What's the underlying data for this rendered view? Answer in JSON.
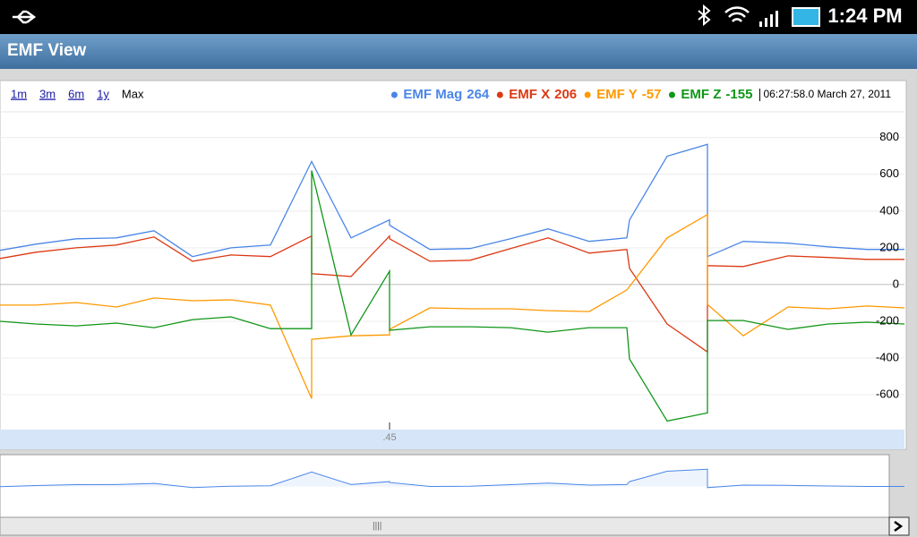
{
  "status_bar": {
    "time": "1:24 PM"
  },
  "app_bar": {
    "title": "EMF View"
  },
  "chart_data": {
    "type": "line",
    "zoom_links": [
      "1m",
      "3m",
      "6m",
      "1y",
      "Max"
    ],
    "timestamp": "06:27:58.0 March 27, 2011",
    "x": [
      0,
      40,
      85,
      130,
      172,
      215,
      258,
      302,
      348,
      348,
      392,
      435,
      435,
      480,
      525,
      570,
      612,
      658,
      700,
      703,
      745,
      790,
      790,
      830,
      880,
      925,
      968,
      1010
    ],
    "xlim": [
      0,
      1010
    ],
    "xticks": [
      {
        "value": 435,
        "label": ".45"
      }
    ],
    "ylim": [
      -780,
      940
    ],
    "yticks": [
      800,
      600,
      400,
      200,
      0,
      -200,
      -400,
      -600
    ],
    "grid": true,
    "series": [
      {
        "name": "EMF Mag",
        "current_value": 264,
        "color": "#4a86e8",
        "values": [
          186,
          220,
          249,
          254,
          293,
          152,
          200,
          215,
          670,
          670,
          254,
          352,
          323,
          191,
          196,
          249,
          303,
          235,
          254,
          352,
          699,
          763,
          152,
          235,
          225,
          205,
          191,
          191
        ]
      },
      {
        "name": "EMF X",
        "current_value": 206,
        "color": "#dc3912",
        "values": [
          142,
          176,
          200,
          215,
          259,
          127,
          161,
          152,
          264,
          59,
          44,
          264,
          249,
          127,
          132,
          196,
          254,
          171,
          191,
          88,
          -215,
          -367,
          103,
          98,
          156,
          147,
          137,
          137
        ]
      },
      {
        "name": "EMF Y",
        "current_value": -57,
        "color": "#ff9900",
        "values": [
          -112,
          -112,
          -98,
          -122,
          -73,
          -88,
          -83,
          -112,
          -621,
          -298,
          -279,
          -274,
          -244,
          -127,
          -132,
          -132,
          -142,
          -147,
          -29,
          -10,
          254,
          381,
          -108,
          -279,
          -122,
          -132,
          -117,
          -127
        ]
      },
      {
        "name": "EMF Z",
        "current_value": -155,
        "color": "#109618",
        "values": [
          -200,
          -215,
          -225,
          -210,
          -235,
          -191,
          -176,
          -240,
          -240,
          621,
          -274,
          73,
          -249,
          -230,
          -230,
          -235,
          -259,
          -235,
          -235,
          -406,
          -743,
          -699,
          -196,
          -196,
          -244,
          -215,
          -205,
          -215
        ]
      }
    ]
  }
}
